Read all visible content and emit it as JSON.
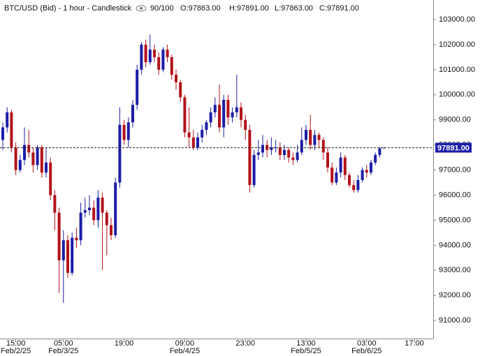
{
  "chart_data": {
    "type": "candlestick",
    "title": "BTC/USD (Bid) - 1 hour - Candlestick",
    "header": {
      "count": "90/100",
      "open": "O:97863.00",
      "high": "H:97891.00",
      "low": "L:97863.00",
      "close": "C:97891.00"
    },
    "up_color": "#1c1ca8",
    "down_color": "#b3121a",
    "categories": [
      null,
      null,
      null,
      "15:00",
      null,
      null,
      null,
      null,
      null,
      null,
      null,
      null,
      null,
      null,
      "05:00",
      null,
      null,
      null,
      null,
      null,
      null,
      null,
      null,
      null,
      null,
      null,
      null,
      null,
      "19:00",
      null,
      null,
      null,
      null,
      null,
      null,
      null,
      null,
      null,
      null,
      null,
      null,
      null,
      "09:00",
      null,
      null,
      null,
      null,
      null,
      null,
      null,
      null,
      null,
      null,
      null,
      null,
      null,
      "23:00",
      null,
      null,
      null,
      null,
      null,
      null,
      null,
      null,
      null,
      null,
      null,
      null,
      null,
      "13:00",
      null,
      null,
      null,
      null,
      null,
      null,
      null,
      null,
      null,
      null,
      null,
      null,
      null,
      "03:00",
      null,
      null,
      null,
      null,
      null,
      null,
      null,
      null,
      null,
      null,
      "17:00"
    ],
    "dates": [
      null,
      null,
      null,
      "Feb/2/25",
      null,
      null,
      null,
      null,
      null,
      null,
      null,
      null,
      null,
      null,
      "Feb/3/25",
      null,
      null,
      null,
      null,
      null,
      null,
      null,
      null,
      null,
      null,
      null,
      null,
      null,
      null,
      null,
      null,
      null,
      null,
      null,
      null,
      null,
      null,
      null,
      null,
      null,
      null,
      null,
      "Feb/4/25",
      null,
      null,
      null,
      null,
      null,
      null,
      null,
      null,
      null,
      null,
      null,
      null,
      null,
      null,
      null,
      null,
      null,
      null,
      null,
      null,
      null,
      null,
      null,
      null,
      null,
      null,
      null,
      "Feb/5/25",
      null,
      null,
      null,
      null,
      null,
      null,
      null,
      null,
      null,
      null,
      null,
      null,
      null,
      "Feb/6/25",
      null,
      null,
      null,
      null,
      null,
      null,
      null,
      null,
      null,
      null,
      null
    ],
    "open": [
      98200,
      98700,
      99300,
      97900,
      97000,
      97400,
      98000,
      97700,
      97200,
      97900,
      96900,
      97300,
      96000,
      95300,
      93400,
      94200,
      92900,
      94300,
      94200,
      95300,
      95400,
      95500,
      95000,
      95900,
      95300,
      94800,
      94400,
      96500,
      98800,
      98200,
      98900,
      99600,
      101000,
      102000,
      101300,
      101800,
      101500,
      101000,
      101800,
      101500,
      100800,
      100500,
      99900,
      98500,
      98300,
      97900,
      98300,
      98600,
      98900,
      99300,
      99600,
      98700,
      99800,
      99100,
      99300,
      99500,
      99000,
      98600,
      96400,
      97600,
      97700,
      98000,
      97800,
      97900,
      97900,
      97600,
      97800,
      97500,
      97400,
      97700,
      98200,
      98600,
      98000,
      98400,
      98200,
      97700,
      97100,
      96500,
      96900,
      97500,
      96800,
      96400,
      96200,
      96600,
      97000,
      96900,
      97300,
      97600,
      97863,
      null,
      null,
      null,
      null,
      null,
      null,
      null
    ],
    "high": [
      98900,
      99500,
      99400,
      98100,
      97600,
      98700,
      98600,
      97900,
      98000,
      98000,
      97900,
      97500,
      96200,
      95500,
      94600,
      94400,
      94500,
      94700,
      95700,
      95900,
      96000,
      95800,
      96200,
      96100,
      95400,
      95100,
      96700,
      99500,
      99000,
      99100,
      99800,
      101200,
      102100,
      102200,
      102400,
      102000,
      101700,
      101900,
      102000,
      101600,
      101000,
      100600,
      100000,
      99500,
      98600,
      98500,
      98800,
      99000,
      99500,
      99900,
      100400,
      100000,
      100000,
      99500,
      100800,
      99700,
      99200,
      98800,
      97800,
      98200,
      98400,
      98200,
      98300,
      98200,
      98100,
      98000,
      97900,
      97700,
      98000,
      98700,
      98800,
      99200,
      98600,
      98500,
      98300,
      97900,
      97300,
      97100,
      97700,
      97600,
      96900,
      96600,
      96800,
      97100,
      97200,
      97400,
      97700,
      97900,
      97891,
      null,
      null,
      null,
      null,
      null,
      null,
      null
    ],
    "low": [
      97800,
      98500,
      97700,
      96800,
      96900,
      97200,
      97500,
      96900,
      97000,
      96700,
      96700,
      95800,
      94600,
      92100,
      91700,
      92700,
      92800,
      93900,
      94000,
      95100,
      95200,
      94800,
      94700,
      93000,
      93600,
      94200,
      94300,
      96300,
      98000,
      97900,
      98700,
      99400,
      100800,
      101100,
      101200,
      101300,
      100800,
      100900,
      101300,
      100600,
      100200,
      99700,
      98300,
      97900,
      97800,
      97800,
      98100,
      98400,
      98700,
      99100,
      98500,
      98300,
      98800,
      98900,
      99100,
      98700,
      98200,
      96100,
      96300,
      97400,
      97500,
      97500,
      97600,
      97700,
      97400,
      97400,
      97300,
      97200,
      97300,
      97600,
      98000,
      97800,
      97800,
      97900,
      97400,
      96900,
      96400,
      96400,
      96700,
      96600,
      96300,
      96100,
      96100,
      96500,
      96700,
      96800,
      97200,
      97500,
      97863,
      null,
      null,
      null,
      null,
      null,
      null,
      null
    ],
    "close": [
      98700,
      99300,
      97900,
      97000,
      97400,
      98000,
      97700,
      97200,
      97900,
      96900,
      97300,
      96000,
      95300,
      93400,
      94200,
      92900,
      94300,
      94200,
      95300,
      95400,
      95500,
      95000,
      95900,
      95300,
      94800,
      94400,
      96500,
      98800,
      98200,
      98900,
      99600,
      101000,
      102000,
      101300,
      101800,
      101500,
      101000,
      101800,
      101500,
      100800,
      100500,
      99900,
      98500,
      98300,
      97900,
      98300,
      98600,
      98900,
      99300,
      99600,
      98700,
      99800,
      99100,
      99300,
      99500,
      99000,
      98600,
      96400,
      97600,
      97700,
      98000,
      97800,
      97900,
      97900,
      97600,
      97800,
      97500,
      97400,
      97700,
      98200,
      98600,
      98000,
      98400,
      98200,
      97700,
      97100,
      96500,
      96900,
      97500,
      96800,
      96400,
      96200,
      96600,
      97000,
      96900,
      97300,
      97600,
      97863,
      97891,
      null,
      null,
      null,
      null,
      null,
      null,
      null
    ],
    "last_price": {
      "value": 97891,
      "label": "97891.00"
    },
    "ylim": [
      90280,
      103780
    ],
    "yticks": [
      {
        "value": 91000,
        "label": "91000.00"
      },
      {
        "value": 92000,
        "label": "92000.00"
      },
      {
        "value": 93000,
        "label": "93000.00"
      },
      {
        "value": 94000,
        "label": "94000.00"
      },
      {
        "value": 95000,
        "label": "95000.00"
      },
      {
        "value": 96000,
        "label": "96000.00"
      },
      {
        "value": 97000,
        "label": "97000.00"
      },
      {
        "value": 98000,
        "label": "98000.00"
      },
      {
        "value": 99000,
        "label": "99000.00"
      },
      {
        "value": 100000,
        "label": "100000.00"
      },
      {
        "value": 101000,
        "label": "101000.00"
      },
      {
        "value": 102000,
        "label": "102000.00"
      },
      {
        "value": 103000,
        "label": "103000.00"
      }
    ]
  }
}
